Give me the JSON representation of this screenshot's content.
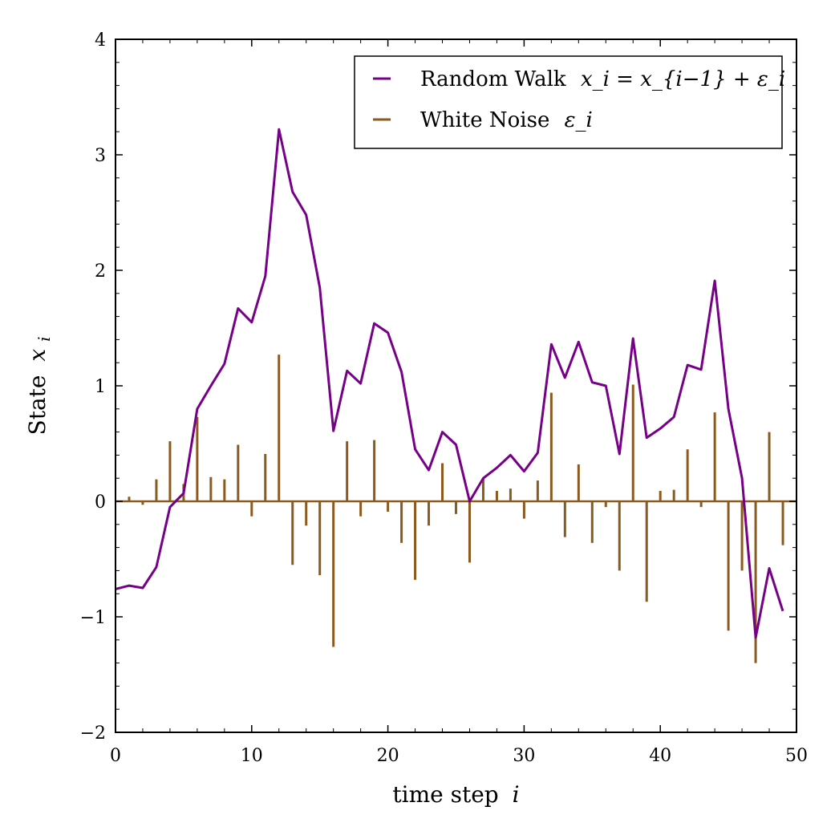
{
  "chart_data": {
    "type": "line",
    "title": "",
    "xlabel": "time step",
    "xlabel_var": "i",
    "ylabel": "State",
    "ylabel_var": "x",
    "ylabel_sub": "i",
    "xlim": [
      0,
      50
    ],
    "ylim": [
      -2,
      4
    ],
    "x_ticks": [
      0,
      10,
      20,
      30,
      40,
      50
    ],
    "x_tick_labels": [
      "0",
      "10",
      "20",
      "30",
      "40",
      "50"
    ],
    "y_ticks": [
      -2,
      -1,
      0,
      1,
      2,
      3,
      4
    ],
    "y_tick_labels": [
      "−2",
      "−1",
      "0",
      "1",
      "2",
      "3",
      "4"
    ],
    "grid": false,
    "legend_position": "top-right",
    "colors": {
      "walk": "#760087",
      "noise": "#8b5a1e"
    },
    "series": [
      {
        "name": "Random Walk",
        "legend_text": "Random Walk",
        "legend_math": "x_i = x_{i−1} + ε_i",
        "type": "line",
        "x": [
          0,
          1,
          2,
          3,
          4,
          5,
          6,
          7,
          8,
          9,
          10,
          11,
          12,
          13,
          14,
          15,
          16,
          17,
          18,
          19,
          20,
          21,
          22,
          23,
          24,
          25,
          26,
          27,
          28,
          29,
          30,
          31,
          32,
          33,
          34,
          35,
          36,
          37,
          38,
          39,
          40,
          41,
          42,
          43,
          44,
          45,
          46,
          47,
          48,
          49
        ],
        "values": [
          -0.76,
          -0.73,
          -0.75,
          -0.57,
          -0.05,
          0.07,
          0.8,
          1.0,
          1.19,
          1.67,
          1.55,
          1.95,
          3.22,
          2.68,
          2.48,
          1.85,
          0.61,
          1.13,
          1.02,
          1.54,
          1.46,
          1.12,
          0.45,
          0.27,
          0.6,
          0.49,
          0.0,
          0.2,
          0.29,
          0.4,
          0.26,
          0.42,
          1.36,
          1.07,
          1.38,
          1.03,
          1.0,
          0.41,
          1.41,
          0.55,
          0.63,
          0.73,
          1.18,
          1.14,
          1.91,
          0.8,
          0.2,
          -1.18,
          -0.58,
          -0.95
        ]
      },
      {
        "name": "White Noise",
        "legend_text": "White Noise",
        "legend_math": "ε_i",
        "type": "stem",
        "x": [
          0,
          1,
          2,
          3,
          4,
          5,
          6,
          7,
          8,
          9,
          10,
          11,
          12,
          13,
          14,
          15,
          16,
          17,
          18,
          19,
          20,
          21,
          22,
          23,
          24,
          25,
          26,
          27,
          28,
          29,
          30,
          31,
          32,
          33,
          34,
          35,
          36,
          37,
          38,
          39,
          40,
          41,
          42,
          43,
          44,
          45,
          46,
          47,
          48,
          49
        ],
        "values": [
          0.0,
          0.04,
          -0.03,
          0.19,
          0.52,
          0.15,
          0.73,
          0.21,
          0.19,
          0.49,
          -0.13,
          0.41,
          1.27,
          -0.55,
          -0.21,
          -0.64,
          -1.26,
          0.52,
          -0.13,
          0.53,
          -0.09,
          -0.36,
          -0.68,
          -0.21,
          0.33,
          -0.11,
          -0.53,
          0.2,
          0.09,
          0.11,
          -0.15,
          0.18,
          0.94,
          -0.31,
          0.32,
          -0.36,
          -0.05,
          -0.6,
          1.01,
          -0.87,
          0.09,
          0.1,
          0.45,
          -0.05,
          0.77,
          -1.12,
          -0.6,
          -1.4,
          0.6,
          -0.38
        ]
      }
    ]
  }
}
